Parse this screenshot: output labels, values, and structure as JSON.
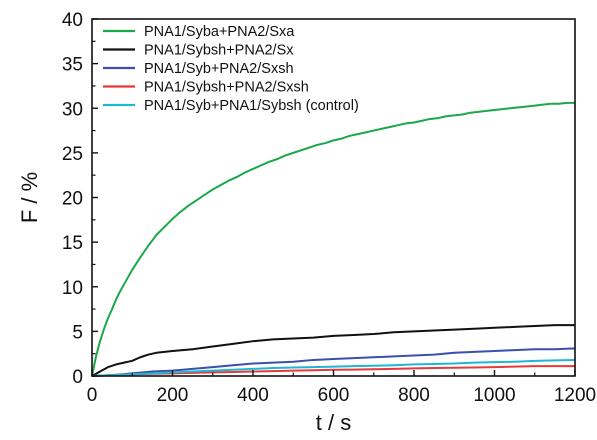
{
  "chart_data": {
    "type": "line",
    "xlabel": "t / s",
    "ylabel": "F / %",
    "xlim": [
      0,
      1200
    ],
    "ylim": [
      0,
      40
    ],
    "x_ticks": [
      0,
      200,
      400,
      600,
      800,
      1000,
      1200
    ],
    "y_ticks": [
      0,
      5,
      10,
      15,
      20,
      25,
      30,
      35,
      40
    ],
    "grid": false,
    "legend_position": "top-left",
    "series": [
      {
        "name": "PNA1/Syba+PNA2/Sxa",
        "color": "#1aa84a",
        "x": [
          0,
          10,
          20,
          30,
          40,
          50,
          60,
          70,
          80,
          90,
          100,
          120,
          140,
          160,
          180,
          200,
          220,
          240,
          260,
          280,
          300,
          320,
          340,
          360,
          380,
          400,
          420,
          440,
          460,
          480,
          500,
          520,
          540,
          560,
          580,
          600,
          620,
          640,
          660,
          680,
          700,
          720,
          740,
          760,
          780,
          800,
          820,
          840,
          860,
          880,
          900,
          920,
          940,
          960,
          980,
          1000,
          1020,
          1040,
          1060,
          1080,
          1100,
          1120,
          1140,
          1160,
          1180,
          1200
        ],
        "values": [
          0,
          2.2,
          3.9,
          5.3,
          6.5,
          7.5,
          8.6,
          9.5,
          10.3,
          11.1,
          11.9,
          13.3,
          14.6,
          15.8,
          16.7,
          17.6,
          18.4,
          19.1,
          19.7,
          20.3,
          20.9,
          21.4,
          21.9,
          22.3,
          22.8,
          23.2,
          23.6,
          24.0,
          24.3,
          24.7,
          25.0,
          25.3,
          25.6,
          25.9,
          26.1,
          26.4,
          26.6,
          26.9,
          27.1,
          27.3,
          27.5,
          27.7,
          27.9,
          28.1,
          28.3,
          28.4,
          28.6,
          28.8,
          28.9,
          29.1,
          29.2,
          29.3,
          29.5,
          29.6,
          29.7,
          29.8,
          29.9,
          30.0,
          30.1,
          30.2,
          30.3,
          30.4,
          30.5,
          30.5,
          30.6,
          30.6
        ]
      },
      {
        "name": "PNA1/Sybsh+PNA2/Sx",
        "color": "#111111",
        "x": [
          0,
          20,
          40,
          60,
          80,
          100,
          120,
          140,
          160,
          200,
          250,
          300,
          350,
          400,
          450,
          500,
          550,
          600,
          650,
          700,
          750,
          800,
          850,
          900,
          950,
          1000,
          1050,
          1100,
          1150,
          1200
        ],
        "values": [
          0,
          0.5,
          1.0,
          1.3,
          1.5,
          1.7,
          2.1,
          2.4,
          2.6,
          2.8,
          3.0,
          3.3,
          3.6,
          3.9,
          4.1,
          4.2,
          4.3,
          4.5,
          4.6,
          4.7,
          4.9,
          5.0,
          5.1,
          5.2,
          5.3,
          5.4,
          5.5,
          5.6,
          5.7,
          5.7
        ]
      },
      {
        "name": "PNA1/Syb+PNA2/Sxsh",
        "color": "#3a4fae",
        "x": [
          0,
          50,
          100,
          150,
          200,
          250,
          300,
          350,
          400,
          450,
          500,
          550,
          600,
          650,
          700,
          750,
          800,
          850,
          900,
          950,
          1000,
          1050,
          1100,
          1150,
          1200
        ],
        "values": [
          0,
          0.1,
          0.3,
          0.5,
          0.6,
          0.8,
          1.0,
          1.2,
          1.4,
          1.5,
          1.6,
          1.8,
          1.9,
          2.0,
          2.1,
          2.2,
          2.3,
          2.4,
          2.6,
          2.7,
          2.8,
          2.9,
          3.0,
          3.0,
          3.1
        ]
      },
      {
        "name": "PNA1/Sybsh+PNA2/Sxsh",
        "color": "#e53a3a",
        "x": [
          0,
          50,
          100,
          150,
          200,
          250,
          300,
          350,
          400,
          450,
          500,
          550,
          600,
          650,
          700,
          750,
          800,
          850,
          900,
          950,
          1000,
          1050,
          1100,
          1150,
          1200
        ],
        "values": [
          0,
          0.1,
          0.2,
          0.25,
          0.3,
          0.35,
          0.4,
          0.45,
          0.5,
          0.55,
          0.6,
          0.65,
          0.7,
          0.72,
          0.75,
          0.8,
          0.85,
          0.9,
          0.92,
          0.95,
          1.0,
          1.05,
          1.1,
          1.1,
          1.1
        ]
      },
      {
        "name": "PNA1/Syb+PNA1/Sybsh (control)",
        "color": "#1fb7d4",
        "x": [
          0,
          50,
          100,
          150,
          200,
          250,
          300,
          350,
          400,
          450,
          500,
          550,
          600,
          650,
          700,
          750,
          800,
          850,
          900,
          950,
          1000,
          1050,
          1100,
          1150,
          1200
        ],
        "values": [
          0,
          0.1,
          0.2,
          0.3,
          0.4,
          0.5,
          0.6,
          0.7,
          0.8,
          0.9,
          0.95,
          1.0,
          1.05,
          1.1,
          1.15,
          1.2,
          1.3,
          1.35,
          1.4,
          1.5,
          1.55,
          1.6,
          1.7,
          1.75,
          1.8
        ]
      }
    ]
  }
}
